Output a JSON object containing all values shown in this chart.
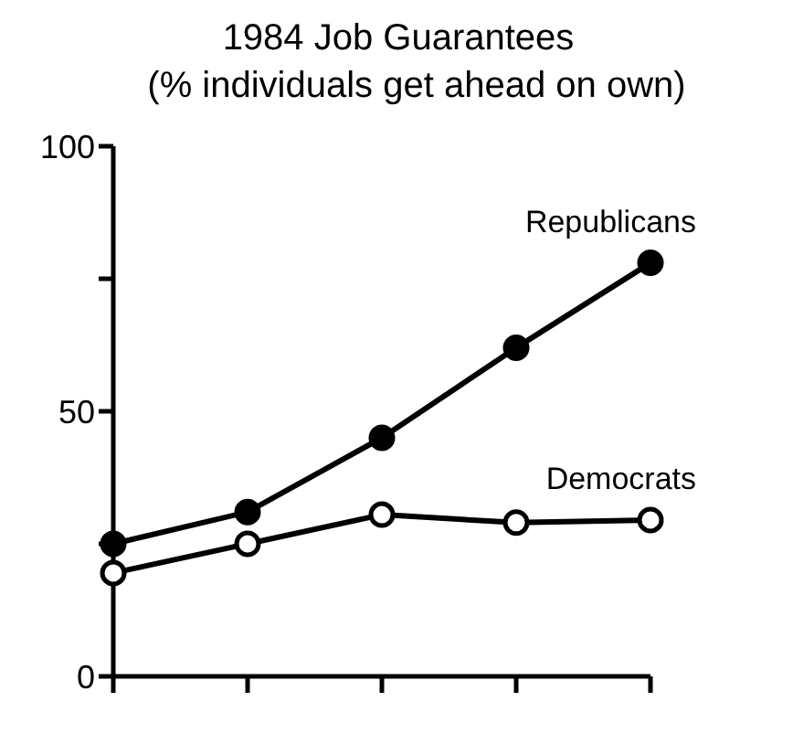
{
  "chart_data": {
    "type": "line",
    "title": "1984 Job Guarantees",
    "subtitle": "(% individuals get ahead on own)",
    "categories": [
      null,
      null,
      null,
      null,
      null
    ],
    "series": [
      {
        "name": "Republicans",
        "color": "#000000",
        "values": [
          25,
          31,
          45,
          62,
          78
        ]
      },
      {
        "name": "Democrats",
        "color": "#000000",
        "values": [
          19.5,
          25,
          30.5,
          29,
          29.5
        ]
      }
    ],
    "ylim": [
      0,
      100
    ],
    "yticks": [
      0,
      {
        "value": 25,
        "label": null
      },
      50,
      {
        "value": 75,
        "label": null
      },
      100
    ],
    "grid": false,
    "legend": false,
    "marker": "circle",
    "line_style": "solid"
  }
}
